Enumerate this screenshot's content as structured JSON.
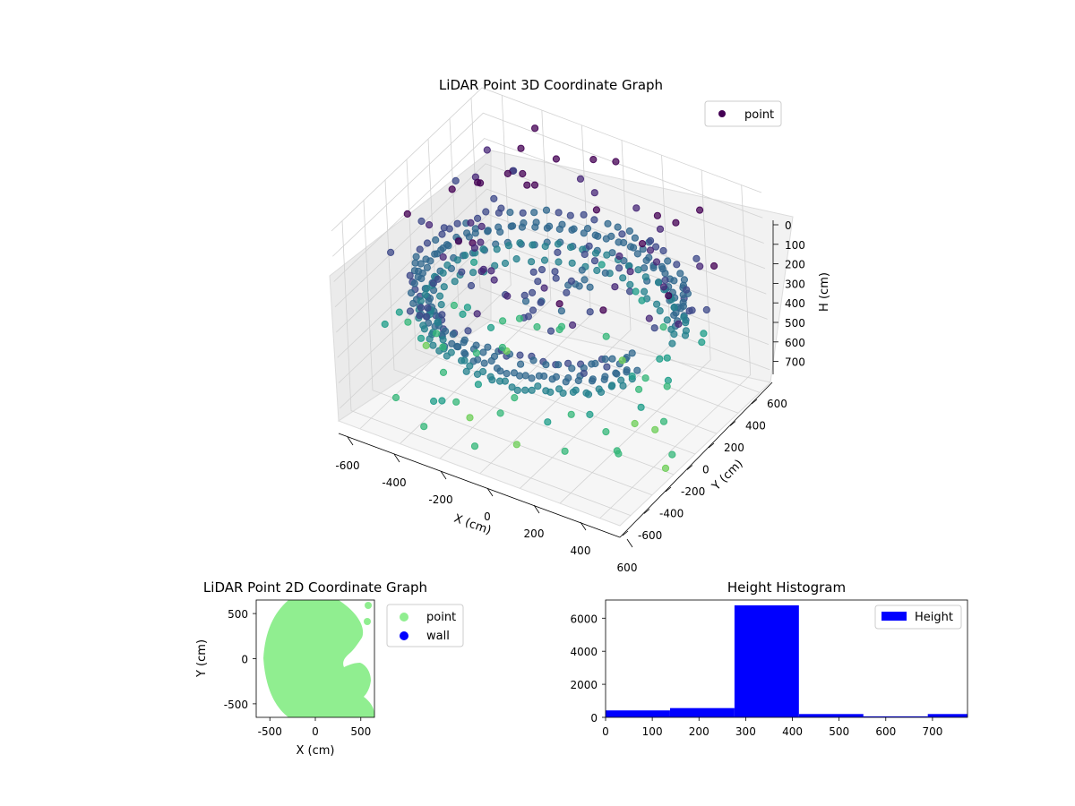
{
  "chart_data": [
    {
      "type": "scatter",
      "projection": "3d",
      "title": "LiDAR Point 3D Coordinate Graph",
      "xlabel": "X (cm)",
      "ylabel": "Y (cm)",
      "zlabel": "H (cm)",
      "xlim": [
        -700,
        700
      ],
      "ylim": [
        -700,
        700
      ],
      "zlim": [
        0,
        750
      ],
      "zinverted": true,
      "xticks": [
        -600,
        -400,
        -200,
        0,
        200,
        400,
        600
      ],
      "yticks": [
        -600,
        -400,
        -200,
        0,
        200,
        400,
        600
      ],
      "zticks": [
        0,
        100,
        200,
        300,
        400,
        500,
        600,
        700
      ],
      "grid": true,
      "colormap": "viridis (colored by height)",
      "legend": {
        "position": "upper-right",
        "entries": [
          {
            "label": "point",
            "color": "#440154"
          }
        ]
      },
      "series": [
        {
          "name": "point",
          "description_of_distribution": "dense partial cylindrical shell of radius ~600 cm at heights ~280-420 cm, open toward +X, plus sparse outliers at lower and higher heights"
        }
      ]
    },
    {
      "type": "scatter",
      "title": "LiDAR Point 2D Coordinate Graph",
      "xlabel": "X (cm)",
      "ylabel": "Y (cm)",
      "xlim": [
        -650,
        650
      ],
      "ylim": [
        -650,
        650
      ],
      "xticks": [
        -500,
        0,
        500
      ],
      "yticks": [
        -500,
        0,
        500
      ],
      "legend": {
        "position": "outside-right",
        "entries": [
          {
            "label": "point",
            "color": "#90ee90"
          },
          {
            "label": "wall",
            "color": "#0000ff"
          }
        ]
      },
      "series": [
        {
          "name": "point",
          "color": "#90ee90"
        },
        {
          "name": "wall",
          "color": "#0000ff"
        }
      ]
    },
    {
      "type": "bar",
      "title": "Height Histogram",
      "xlim": [
        0,
        775
      ],
      "ylim": [
        0,
        7100
      ],
      "xticks": [
        0,
        100,
        200,
        300,
        400,
        500,
        600,
        700
      ],
      "yticks": [
        0,
        2000,
        4000,
        6000
      ],
      "bin_edges": [
        0,
        138,
        276,
        414,
        552,
        690,
        775
      ],
      "values": [
        420,
        560,
        6780,
        200,
        60,
        200
      ],
      "color": "#0000ff",
      "legend": {
        "position": "upper-right",
        "entries": [
          {
            "label": "Height",
            "color": "#0000ff"
          }
        ]
      }
    }
  ]
}
